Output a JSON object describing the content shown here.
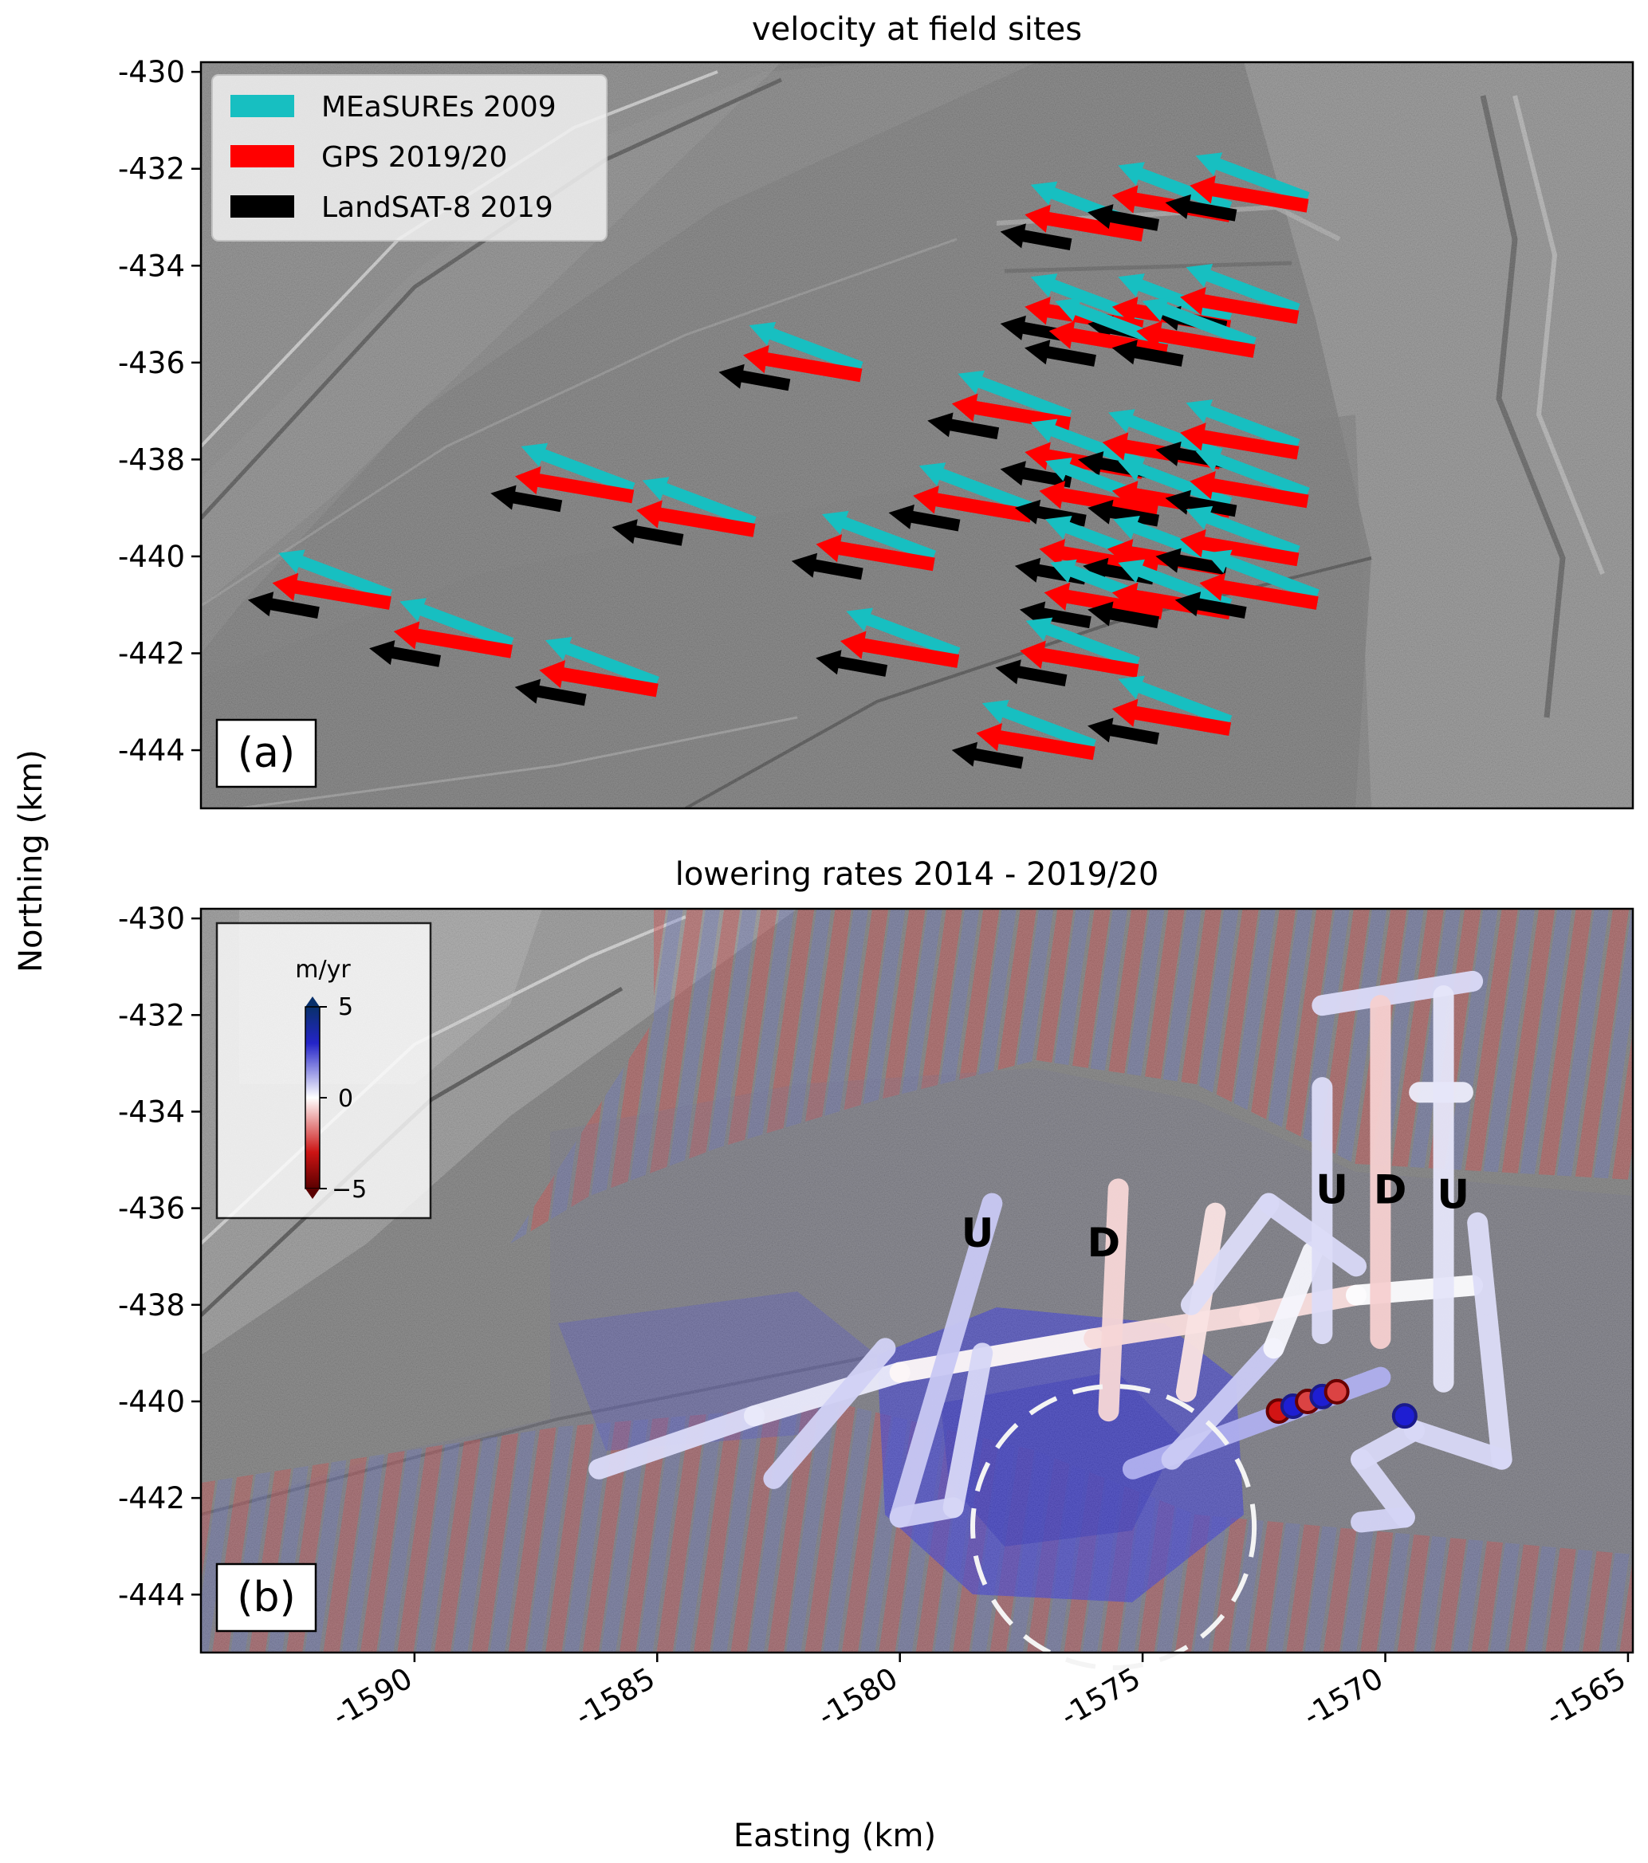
{
  "figure": {
    "xlabel": "Easting (km)",
    "ylabel": "Northing (km)"
  },
  "panel_a": {
    "title": "velocity at field sites",
    "label": "(a)",
    "legend": [
      {
        "label": "MEaSUREs 2009",
        "color": "#17bfc1"
      },
      {
        "label": "GPS 2019/20",
        "color": "#ff0000"
      },
      {
        "label": "LandSAT-8 2019",
        "color": "#000000"
      }
    ]
  },
  "panel_b": {
    "title": "lowering rates 2014 - 2019/20",
    "label": "(b)",
    "colorbar": {
      "title": "m/yr",
      "ticks": [
        "5",
        "0",
        "−5"
      ],
      "colors": [
        "#08306b",
        "#1f1fd6",
        "#ffffff",
        "#d60000",
        "#5a0000"
      ]
    },
    "site_labels": [
      {
        "text": "U",
        "x": -1578.4,
        "y": -436.8
      },
      {
        "text": "D",
        "x": -1575.8,
        "y": -437.0
      },
      {
        "text": "U",
        "x": -1571.1,
        "y": -435.9
      },
      {
        "text": "D",
        "x": -1569.9,
        "y": -435.9
      },
      {
        "text": "U",
        "x": -1568.6,
        "y": -436.0
      }
    ],
    "circle": {
      "cx": -1575.6,
      "cy": -442.6,
      "r": 2.9
    }
  },
  "chart_data": [
    {
      "type": "scatter",
      "title": "velocity at field sites",
      "xlabel": "Easting (km)",
      "ylabel": "Northing (km)",
      "xlim": [
        -1594.4,
        -1564.9
      ],
      "ylim": [
        -445.2,
        -429.8
      ],
      "yticks": [
        -430,
        -432,
        -434,
        -436,
        -438,
        -440,
        -442,
        -444
      ],
      "legend_position": "top-left",
      "series": [
        {
          "name": "MEaSUREs 2009",
          "kind": "velocity arrows",
          "color": "#17bfc1"
        },
        {
          "name": "GPS 2019/20",
          "kind": "velocity arrows",
          "color": "#ff0000"
        },
        {
          "name": "LandSAT-8 2019",
          "kind": "velocity arrows",
          "color": "#000000"
        }
      ],
      "sites": [
        {
          "x": -1585.5,
          "y": -438.6
        },
        {
          "x": -1583.0,
          "y": -439.3
        },
        {
          "x": -1590.5,
          "y": -440.8
        },
        {
          "x": -1588.0,
          "y": -441.8
        },
        {
          "x": -1585.0,
          "y": -442.6
        },
        {
          "x": -1580.8,
          "y": -436.1
        },
        {
          "x": -1579.3,
          "y": -440.0
        },
        {
          "x": -1576.5,
          "y": -437.1
        },
        {
          "x": -1577.3,
          "y": -439.0
        },
        {
          "x": -1578.8,
          "y": -442.0
        },
        {
          "x": -1575.0,
          "y": -433.2
        },
        {
          "x": -1573.2,
          "y": -432.8
        },
        {
          "x": -1571.6,
          "y": -432.6
        },
        {
          "x": -1575.0,
          "y": -435.1
        },
        {
          "x": -1573.2,
          "y": -435.1
        },
        {
          "x": -1571.8,
          "y": -434.9
        },
        {
          "x": -1574.5,
          "y": -435.6
        },
        {
          "x": -1572.7,
          "y": -435.6
        },
        {
          "x": -1575.0,
          "y": -438.1
        },
        {
          "x": -1573.4,
          "y": -437.9
        },
        {
          "x": -1571.8,
          "y": -437.7
        },
        {
          "x": -1574.7,
          "y": -438.9
        },
        {
          "x": -1573.2,
          "y": -438.9
        },
        {
          "x": -1571.6,
          "y": -438.7
        },
        {
          "x": -1574.7,
          "y": -440.1
        },
        {
          "x": -1573.3,
          "y": -440.1
        },
        {
          "x": -1571.8,
          "y": -439.9
        },
        {
          "x": -1574.6,
          "y": -441.0
        },
        {
          "x": -1573.2,
          "y": -441.0
        },
        {
          "x": -1571.4,
          "y": -440.8
        },
        {
          "x": -1575.1,
          "y": -442.2
        },
        {
          "x": -1573.2,
          "y": -443.4
        },
        {
          "x": -1576.0,
          "y": -443.9
        }
      ]
    },
    {
      "type": "heatmap",
      "title": "lowering rates 2014 - 2019/20",
      "xlabel": "Easting (km)",
      "ylabel": "Northing (km)",
      "xlim": [
        -1594.4,
        -1564.9
      ],
      "ylim": [
        -445.2,
        -429.8
      ],
      "xticks": [
        -1590,
        -1585,
        -1580,
        -1575,
        -1570,
        -1565
      ],
      "yticks": [
        -430,
        -432,
        -434,
        -436,
        -438,
        -440,
        -442,
        -444
      ],
      "colorbar": {
        "label": "m/yr",
        "range": [
          -5,
          5
        ]
      },
      "tracks": [
        {
          "points": [
            [
              -1586.2,
              -441.4
            ],
            [
              -1583.0,
              -440.3
            ],
            [
              -1580.0,
              -439.4
            ],
            [
              -1576.0,
              -438.7
            ],
            [
              -1572.8,
              -438.2
            ],
            [
              -1570.6,
              -437.8
            ],
            [
              -1568.2,
              -437.6
            ]
          ],
          "values": [
            1.0,
            0.6,
            0.3,
            -0.6,
            -0.9,
            -0.5,
            0.6
          ]
        },
        {
          "points": [
            [
              -1582.6,
              -441.6
            ],
            [
              -1580.3,
              -438.9
            ]
          ],
          "values": [
            1.2,
            0.8
          ]
        },
        {
          "points": [
            [
              -1580.0,
              -442.4
            ],
            [
              -1578.1,
              -435.9
            ]
          ],
          "values": [
            1.4,
            1.0
          ]
        },
        {
          "points": [
            [
              -1580.0,
              -442.4
            ],
            [
              -1578.9,
              -442.2
            ],
            [
              -1578.3,
              -439.0
            ]
          ],
          "values": [
            1.2,
            1.0,
            0.8
          ]
        },
        {
          "points": [
            [
              -1575.7,
              -440.2
            ],
            [
              -1575.5,
              -435.6
            ]
          ],
          "values": [
            -0.7,
            -1.0
          ]
        },
        {
          "points": [
            [
              -1574.1,
              -439.8
            ],
            [
              -1573.5,
              -436.1
            ]
          ],
          "values": [
            -0.5,
            -0.7
          ]
        },
        {
          "points": [
            [
              -1575.2,
              -441.4
            ],
            [
              -1570.1,
              -439.5
            ]
          ],
          "values": [
            2.3,
            1.2
          ]
        },
        {
          "points": [
            [
              -1574.4,
              -441.2
            ],
            [
              -1572.3,
              -438.9
            ],
            [
              -1571.5,
              -436.9
            ]
          ],
          "values": [
            1.6,
            0.7,
            -0.3
          ]
        },
        {
          "points": [
            [
              -1574.0,
              -438.0
            ],
            [
              -1572.4,
              -435.9
            ],
            [
              -1570.6,
              -437.2
            ]
          ],
          "values": [
            0.7,
            0.8,
            0.9
          ]
        },
        {
          "points": [
            [
              -1571.3,
              -438.6
            ],
            [
              -1571.3,
              -433.5
            ]
          ],
          "values": [
            0.6,
            0.9
          ]
        },
        {
          "points": [
            [
              -1571.3,
              -431.8
            ],
            [
              -1568.2,
              -431.3
            ]
          ],
          "values": [
            0.9,
            0.7
          ]
        },
        {
          "points": [
            [
              -1570.1,
              -431.8
            ],
            [
              -1570.1,
              -438.7
            ]
          ],
          "values": [
            -1.2,
            -0.8
          ]
        },
        {
          "points": [
            [
              -1569.3,
              -433.6
            ],
            [
              -1568.4,
              -433.6
            ]
          ],
          "values": [
            0.4,
            0.4
          ]
        },
        {
          "points": [
            [
              -1568.8,
              -431.6
            ],
            [
              -1568.8,
              -439.6
            ]
          ],
          "values": [
            0.6,
            0.5
          ]
        },
        {
          "points": [
            [
              -1568.1,
              -436.3
            ],
            [
              -1567.6,
              -441.2
            ],
            [
              -1569.4,
              -440.6
            ],
            [
              -1570.5,
              -441.2
            ],
            [
              -1569.6,
              -442.4
            ],
            [
              -1570.5,
              -442.5
            ]
          ],
          "values": [
            0.7,
            0.8,
            0.9,
            0.8,
            0.9,
            1.0
          ]
        }
      ],
      "strong_points": [
        {
          "x": -1572.2,
          "y": -440.2,
          "value": -5
        },
        {
          "x": -1571.9,
          "y": -440.1,
          "value": 5
        },
        {
          "x": -1571.6,
          "y": -440.0,
          "value": -4
        },
        {
          "x": -1571.3,
          "y": -439.9,
          "value": 5
        },
        {
          "x": -1571.0,
          "y": -439.8,
          "value": -4
        },
        {
          "x": -1569.6,
          "y": -440.3,
          "value": 5
        }
      ],
      "annotations": [
        "U",
        "D",
        "U",
        "D",
        "U"
      ]
    }
  ]
}
